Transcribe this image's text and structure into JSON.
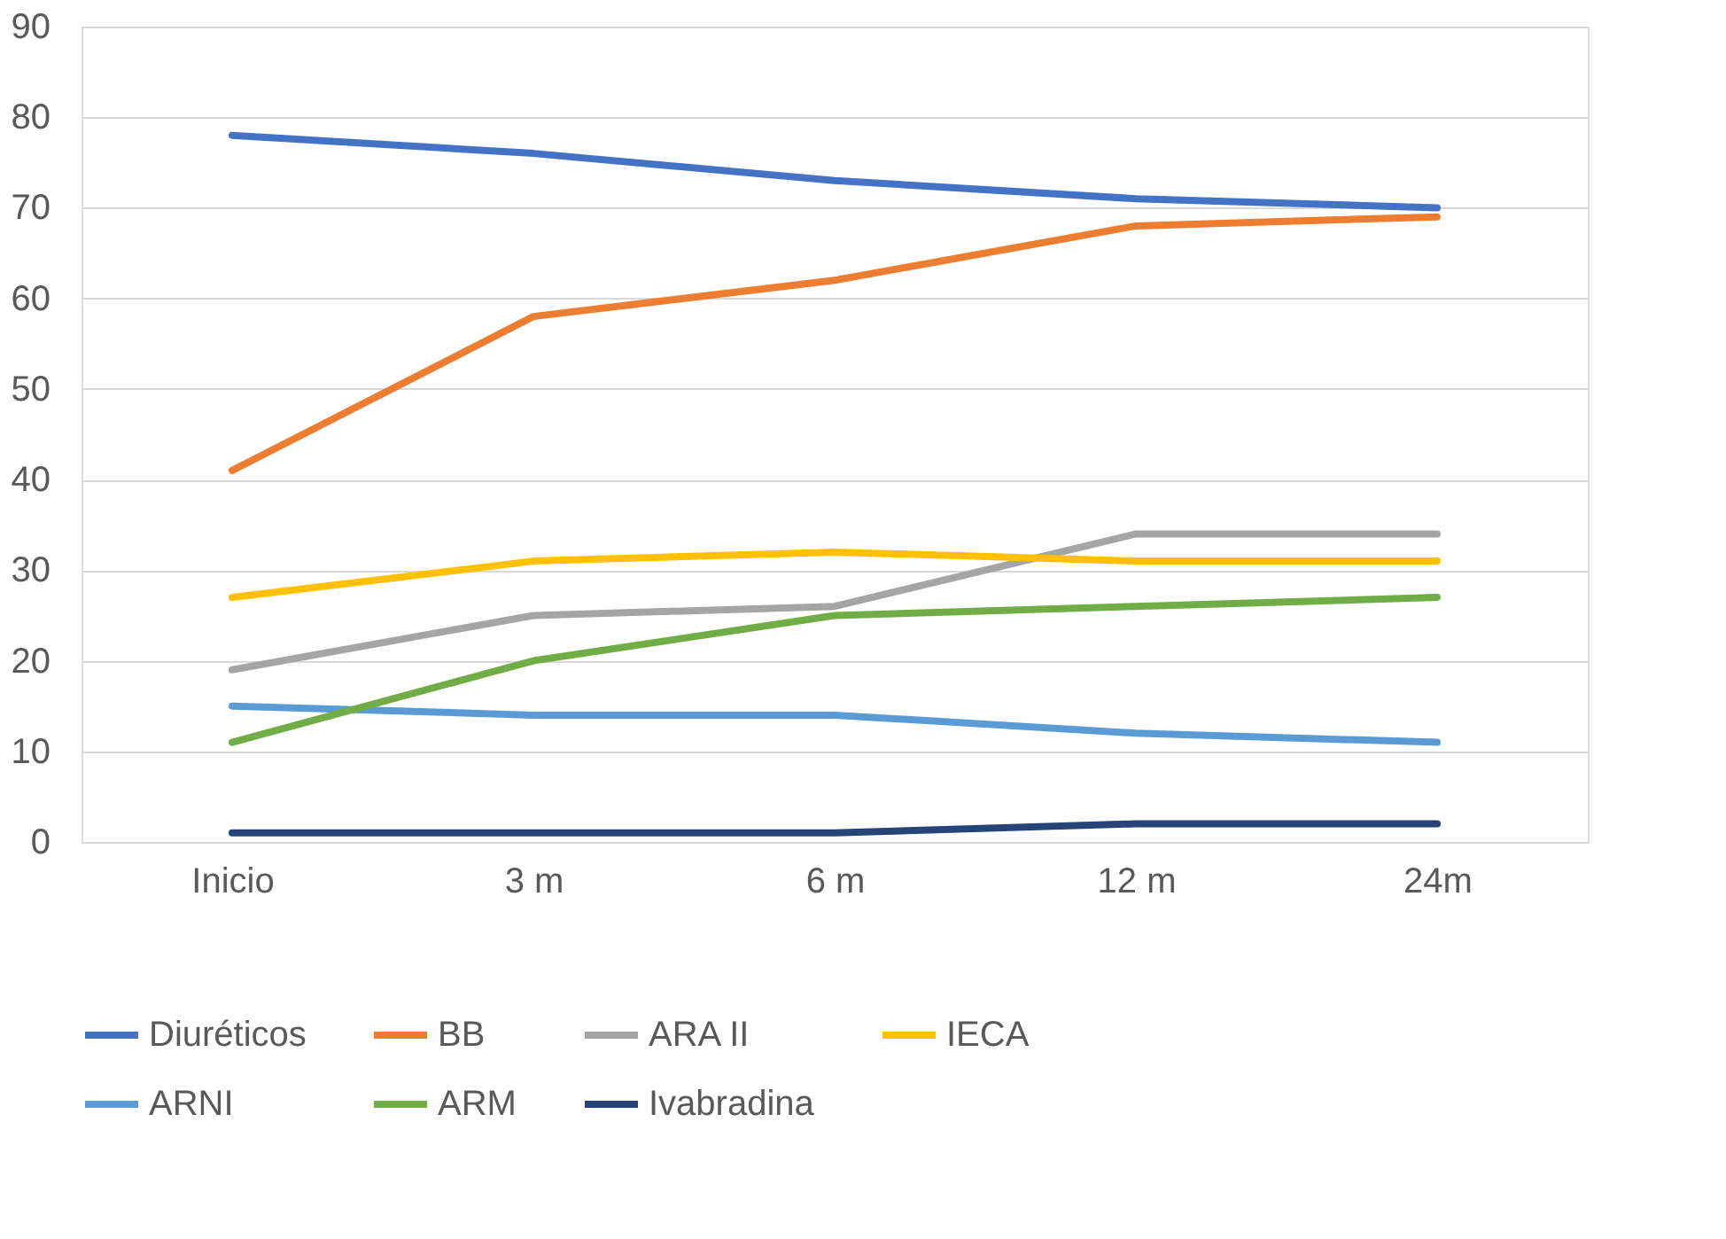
{
  "chart_data": {
    "type": "line",
    "categories": [
      "Inicio",
      "3 m",
      "6 m",
      "12 m",
      "24m"
    ],
    "series": [
      {
        "name": "Diuréticos",
        "color": "#4472c4",
        "values": [
          78,
          76,
          73,
          71,
          70
        ]
      },
      {
        "name": "BB",
        "color": "#ed7d31",
        "values": [
          41,
          58,
          62,
          68,
          69
        ]
      },
      {
        "name": "ARA II",
        "color": "#a5a5a5",
        "values": [
          19,
          25,
          26,
          34,
          34
        ]
      },
      {
        "name": "IECA",
        "color": "#ffc000",
        "values": [
          27,
          31,
          32,
          31,
          31
        ]
      },
      {
        "name": "ARNI",
        "color": "#5b9bd5",
        "values": [
          15,
          14,
          14,
          12,
          11
        ]
      },
      {
        "name": "ARM",
        "color": "#70ad47",
        "values": [
          11,
          20,
          25,
          26,
          27
        ]
      },
      {
        "name": "Ivabradina",
        "color": "#264478",
        "values": [
          1,
          1,
          1,
          2,
          2
        ]
      }
    ],
    "ylim": [
      0,
      90
    ],
    "yticks": [
      0,
      10,
      20,
      30,
      40,
      50,
      60,
      70,
      80,
      90
    ],
    "grid": "y",
    "legend": "bottom",
    "line_style": "solid"
  }
}
